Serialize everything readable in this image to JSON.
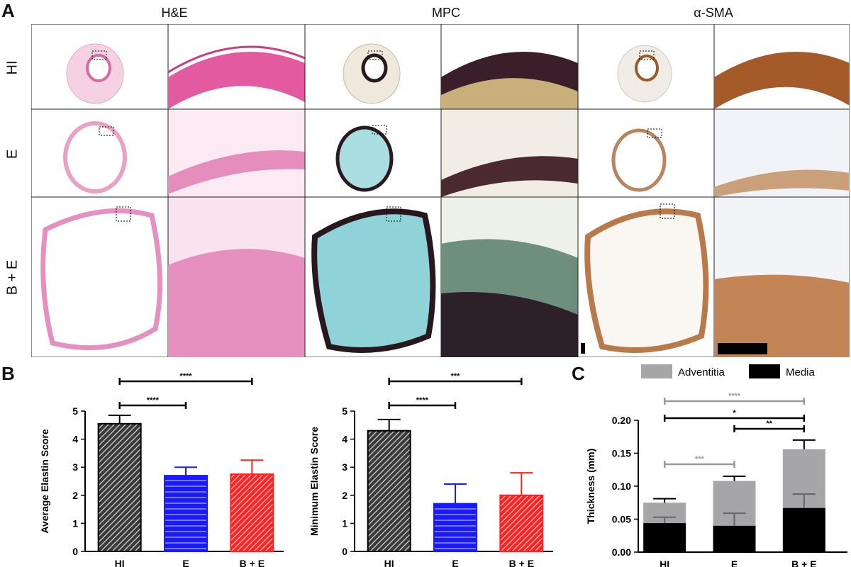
{
  "panel_a": {
    "letter": "A",
    "columns": [
      "H&E",
      "MPC",
      "α-SMA"
    ],
    "rows": [
      "HI",
      "E",
      "B + E"
    ]
  },
  "panel_b": {
    "letter": "B"
  },
  "panel_c": {
    "letter": "C"
  },
  "colors": {
    "HI": "#3a3a3a",
    "E": "#1a1aff",
    "BE": "#ff2020",
    "adventitia": "#a6a6a8",
    "media": "#000000",
    "he_bg": "#f7dde9",
    "he_tissue": "#e890bd",
    "mpc_lumen": "#8fd3d8",
    "mpc_dark": "#3a2a30",
    "sma_tissue": "#b87a4a"
  },
  "chart_data": [
    {
      "type": "bar",
      "categories": [
        "HI",
        "E",
        "B + E"
      ],
      "values": [
        4.55,
        2.7,
        2.75
      ],
      "errors": [
        0.3,
        0.3,
        0.5
      ],
      "ylabel": "Average Elastin Score",
      "xlabel": "",
      "ylim": [
        0,
        5
      ],
      "yticks": [
        "0",
        "1",
        "2",
        "3",
        "4",
        "5"
      ],
      "bar_patterns": [
        "diagonal",
        "horizontal",
        "diagonal"
      ],
      "significance": [
        {
          "from": 0,
          "to": 1,
          "label": "****"
        },
        {
          "from": 0,
          "to": 2,
          "label": "****"
        }
      ]
    },
    {
      "type": "bar",
      "categories": [
        "HI",
        "E",
        "B + E"
      ],
      "values": [
        4.3,
        1.7,
        2.0
      ],
      "errors": [
        0.4,
        0.7,
        0.8
      ],
      "ylabel": "Minimum Elastin Score",
      "xlabel": "",
      "ylim": [
        0,
        5
      ],
      "yticks": [
        "0",
        "1",
        "2",
        "3",
        "4",
        "5"
      ],
      "bar_patterns": [
        "diagonal",
        "horizontal",
        "diagonal"
      ],
      "significance": [
        {
          "from": 0,
          "to": 1,
          "label": "****"
        },
        {
          "from": 0,
          "to": 2,
          "label": "***"
        }
      ]
    },
    {
      "type": "bar",
      "stacked": true,
      "categories": [
        "HI",
        "E",
        "B + E"
      ],
      "series": [
        {
          "name": "Media",
          "values": [
            0.044,
            0.04,
            0.067
          ],
          "errors": [
            0.009,
            0.019,
            0.021
          ]
        },
        {
          "name": "Adventitia",
          "values": [
            0.031,
            0.068,
            0.089
          ],
          "errors": [
            0.006,
            0.007,
            0.014
          ]
        }
      ],
      "ylabel": "Thickness (mm)",
      "xlabel": "",
      "ylim": [
        0,
        0.2
      ],
      "yticks": [
        "0.00",
        "0.05",
        "0.10",
        "0.15",
        "0.20"
      ],
      "legend": "top",
      "significance": [
        {
          "from": 0,
          "to": 1,
          "label": "***",
          "color": "gray"
        },
        {
          "from": 1,
          "to": 2,
          "label": "**",
          "color": "black"
        },
        {
          "from": 0,
          "to": 2,
          "label": "*",
          "color": "black"
        },
        {
          "from": 0,
          "to": 2,
          "label": "****",
          "color": "gray"
        }
      ]
    }
  ]
}
